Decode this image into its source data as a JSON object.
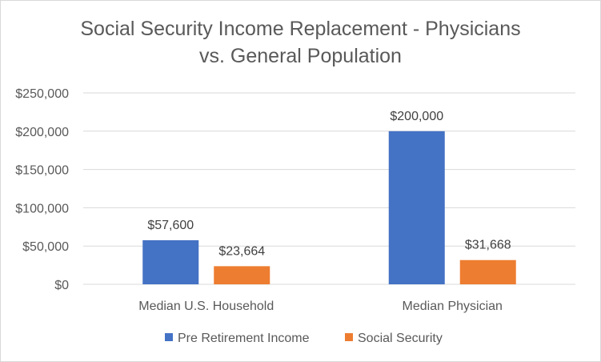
{
  "chart_data": {
    "type": "bar",
    "title_line1": "Social Security Income Replacement - Physicians",
    "title_line2": "vs. General Population",
    "xlabel": "",
    "ylabel": "",
    "categories": [
      "Median U.S. Household",
      "Median Physician"
    ],
    "series": [
      {
        "name": "Pre Retirement Income",
        "color": "#4472c4",
        "values": [
          57600,
          200000
        ],
        "labels": [
          "$57,600",
          "$200,000"
        ]
      },
      {
        "name": "Social Security",
        "color": "#ed7d31",
        "values": [
          23664,
          31668
        ],
        "labels": [
          "$23,664",
          "$31,668"
        ]
      }
    ],
    "ylim": [
      0,
      250000
    ],
    "yticks": [
      0,
      50000,
      100000,
      150000,
      200000,
      250000
    ],
    "ytick_labels": [
      "$0",
      "$50,000",
      "$100,000",
      "$150,000",
      "$200,000",
      "$250,000"
    ],
    "grid": true,
    "legend_position": "bottom"
  }
}
